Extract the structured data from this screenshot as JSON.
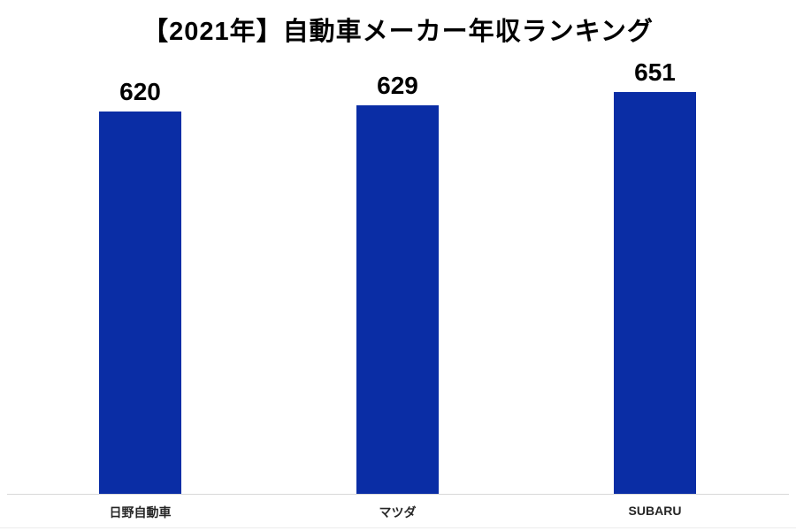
{
  "title": "【2021年】自動車メーカー年収ランキング",
  "colors": {
    "bar": "#0A2DA5",
    "title_text": "#000000",
    "value_label_text": "#000000",
    "category_label_text": "#262626",
    "axis_line": "#D9D9D9",
    "background": "#FFFFFF"
  },
  "chart_data": {
    "type": "bar",
    "title": "【2021年】自動車メーカー年収ランキング",
    "categories": [
      "日野自動車",
      "マツダ",
      "SUBARU"
    ],
    "values": [
      620,
      629,
      651
    ],
    "xlabel": "",
    "ylabel": "",
    "data_labels_visible": true,
    "y_axis_visible": false,
    "x_axis_line_visible": true,
    "grid": false,
    "legend": false,
    "baseline": 0,
    "bar_color": "#0A2DA5"
  }
}
